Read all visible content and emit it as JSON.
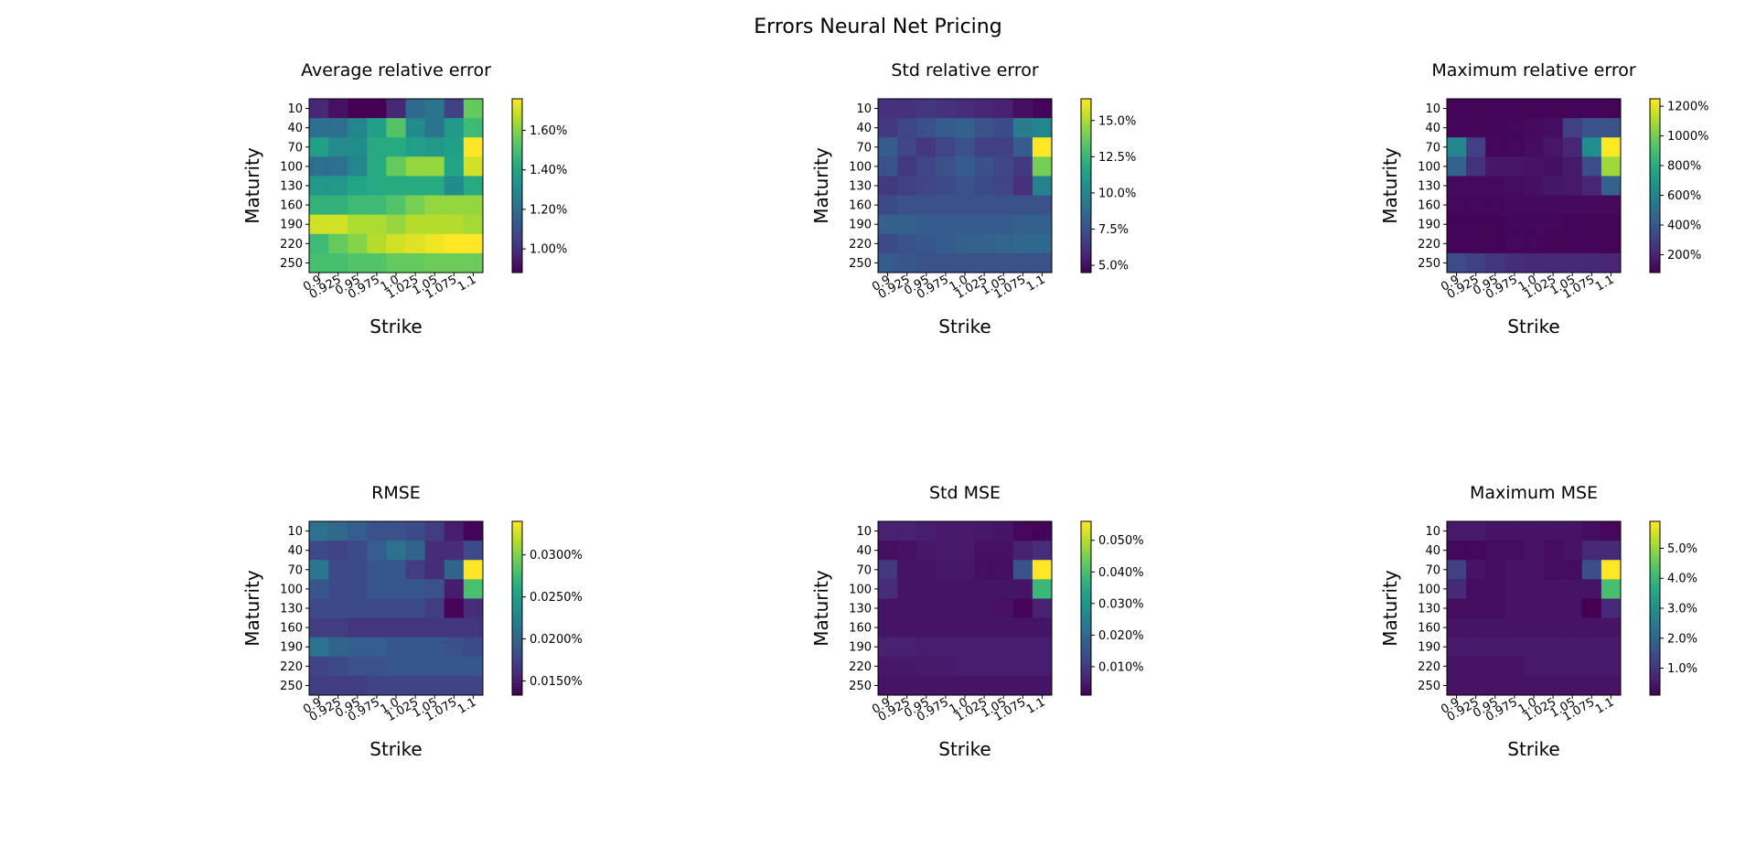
{
  "suptitle": "Errors Neural Net Pricing",
  "colormap": "viridis",
  "axes_common": {
    "xlabel": "Strike",
    "ylabel": "Maturity",
    "xticks": [
      "0.9",
      "0.925",
      "0.95",
      "0.975",
      "1.0",
      "1.025",
      "1.05",
      "1.075",
      "1.1"
    ],
    "yticks": [
      "10",
      "40",
      "70",
      "100",
      "130",
      "160",
      "190",
      "220",
      "250"
    ]
  },
  "chart_data": [
    {
      "type": "heatmap",
      "title": "Average relative error",
      "x": [
        "0.9",
        "0.925",
        "0.95",
        "0.975",
        "1.0",
        "1.025",
        "1.05",
        "1.075",
        "1.1"
      ],
      "y": [
        "10",
        "40",
        "70",
        "100",
        "130",
        "160",
        "190",
        "220",
        "250"
      ],
      "unit": "%",
      "vmin": 0.88,
      "vmax": 1.76,
      "colorbar_ticks": [
        {
          "value": 1.0,
          "label": "1.00%"
        },
        {
          "value": 1.2,
          "label": "1.20%"
        },
        {
          "value": 1.4,
          "label": "1.40%"
        },
        {
          "value": 1.6,
          "label": "1.60%"
        }
      ],
      "z": [
        [
          0.98,
          0.92,
          0.88,
          0.88,
          0.98,
          1.18,
          1.22,
          1.05,
          1.55
        ],
        [
          1.2,
          1.2,
          1.28,
          1.38,
          1.52,
          1.3,
          1.22,
          1.35,
          1.48
        ],
        [
          1.38,
          1.3,
          1.3,
          1.42,
          1.42,
          1.38,
          1.35,
          1.38,
          1.76
        ],
        [
          1.2,
          1.2,
          1.28,
          1.42,
          1.55,
          1.62,
          1.62,
          1.4,
          1.7
        ],
        [
          1.35,
          1.35,
          1.4,
          1.42,
          1.42,
          1.42,
          1.42,
          1.3,
          1.42
        ],
        [
          1.45,
          1.45,
          1.48,
          1.48,
          1.52,
          1.58,
          1.62,
          1.62,
          1.62
        ],
        [
          1.7,
          1.7,
          1.65,
          1.65,
          1.62,
          1.66,
          1.66,
          1.66,
          1.64
        ],
        [
          1.48,
          1.55,
          1.6,
          1.66,
          1.7,
          1.72,
          1.74,
          1.76,
          1.76
        ],
        [
          1.5,
          1.5,
          1.52,
          1.52,
          1.55,
          1.55,
          1.56,
          1.56,
          1.56
        ]
      ]
    },
    {
      "type": "heatmap",
      "title": "Std relative error",
      "x": [
        "0.9",
        "0.925",
        "0.95",
        "0.975",
        "1.0",
        "1.025",
        "1.05",
        "1.075",
        "1.1"
      ],
      "y": [
        "10",
        "40",
        "70",
        "100",
        "130",
        "160",
        "190",
        "220",
        "250"
      ],
      "unit": "%",
      "vmin": 4.5,
      "vmax": 16.5,
      "colorbar_ticks": [
        {
          "value": 5.0,
          "label": "5.0%"
        },
        {
          "value": 7.5,
          "label": "7.5%"
        },
        {
          "value": 10.0,
          "label": "10.0%"
        },
        {
          "value": 12.5,
          "label": "12.5%"
        },
        {
          "value": 15.0,
          "label": "15.0%"
        }
      ],
      "z": [
        [
          6.2,
          6.2,
          6.4,
          6.2,
          6.0,
          5.8,
          5.6,
          5.0,
          4.6
        ],
        [
          6.5,
          7.0,
          7.5,
          8.0,
          8.2,
          7.5,
          7.2,
          9.5,
          10.0
        ],
        [
          8.0,
          7.0,
          6.5,
          7.0,
          7.5,
          6.8,
          6.8,
          8.0,
          16.5
        ],
        [
          7.5,
          6.5,
          7.0,
          7.5,
          8.0,
          7.5,
          7.0,
          6.5,
          14.0
        ],
        [
          6.5,
          6.8,
          7.0,
          7.2,
          7.5,
          7.2,
          7.0,
          6.2,
          9.8
        ],
        [
          7.2,
          7.5,
          7.5,
          7.5,
          7.5,
          7.5,
          7.5,
          7.5,
          7.5
        ],
        [
          8.2,
          8.2,
          8.0,
          8.0,
          8.0,
          8.0,
          8.0,
          8.2,
          8.2
        ],
        [
          7.2,
          7.5,
          7.8,
          8.0,
          8.2,
          8.3,
          8.4,
          8.5,
          8.5
        ],
        [
          8.0,
          7.8,
          7.5,
          7.5,
          7.5,
          7.5,
          7.5,
          7.5,
          7.5
        ]
      ]
    },
    {
      "type": "heatmap",
      "title": "Maximum relative error",
      "x": [
        "0.9",
        "0.925",
        "0.95",
        "0.975",
        "1.0",
        "1.025",
        "1.05",
        "1.075",
        "1.1"
      ],
      "y": [
        "10",
        "40",
        "70",
        "100",
        "130",
        "160",
        "190",
        "220",
        "250"
      ],
      "unit": "%",
      "vmin": 80,
      "vmax": 1250,
      "colorbar_ticks": [
        {
          "value": 200,
          "label": "200%"
        },
        {
          "value": 400,
          "label": "400%"
        },
        {
          "value": 600,
          "label": "600%"
        },
        {
          "value": 800,
          "label": "800%"
        },
        {
          "value": 1000,
          "label": "1000%"
        },
        {
          "value": 1200,
          "label": "1200%"
        }
      ],
      "z": [
        [
          90,
          90,
          90,
          90,
          90,
          90,
          90,
          90,
          90
        ],
        [
          95,
          95,
          95,
          100,
          110,
          120,
          300,
          380,
          380
        ],
        [
          620,
          300,
          100,
          100,
          120,
          150,
          200,
          650,
          1250
        ],
        [
          450,
          250,
          150,
          150,
          140,
          130,
          160,
          350,
          1080
        ],
        [
          110,
          110,
          110,
          120,
          130,
          150,
          160,
          200,
          450
        ],
        [
          100,
          100,
          100,
          110,
          110,
          110,
          110,
          110,
          110
        ],
        [
          90,
          90,
          90,
          100,
          100,
          100,
          90,
          90,
          90
        ],
        [
          90,
          90,
          90,
          100,
          100,
          90,
          90,
          90,
          90
        ],
        [
          350,
          300,
          260,
          230,
          220,
          220,
          220,
          210,
          200
        ]
      ]
    },
    {
      "type": "heatmap",
      "title": "RMSE",
      "x": [
        "0.9",
        "0.925",
        "0.95",
        "0.975",
        "1.0",
        "1.025",
        "1.05",
        "1.075",
        "1.1"
      ],
      "y": [
        "10",
        "40",
        "70",
        "100",
        "130",
        "160",
        "190",
        "220",
        "250"
      ],
      "unit": "%",
      "vmin": 0.0133,
      "vmax": 0.034,
      "colorbar_ticks": [
        {
          "value": 0.015,
          "label": "0.0150%"
        },
        {
          "value": 0.02,
          "label": "0.0200%"
        },
        {
          "value": 0.025,
          "label": "0.0250%"
        },
        {
          "value": 0.03,
          "label": "0.0300%"
        }
      ],
      "z": [
        [
          0.021,
          0.0205,
          0.0195,
          0.0185,
          0.0185,
          0.018,
          0.017,
          0.015,
          0.0135
        ],
        [
          0.018,
          0.0175,
          0.018,
          0.0195,
          0.021,
          0.02,
          0.016,
          0.016,
          0.018
        ],
        [
          0.0215,
          0.018,
          0.018,
          0.019,
          0.019,
          0.017,
          0.016,
          0.02,
          0.034
        ],
        [
          0.019,
          0.018,
          0.018,
          0.019,
          0.019,
          0.019,
          0.0185,
          0.015,
          0.028
        ],
        [
          0.018,
          0.018,
          0.018,
          0.018,
          0.018,
          0.018,
          0.017,
          0.0135,
          0.016
        ],
        [
          0.017,
          0.017,
          0.0165,
          0.0165,
          0.0165,
          0.0165,
          0.0165,
          0.0165,
          0.0165
        ],
        [
          0.021,
          0.02,
          0.0195,
          0.0195,
          0.019,
          0.019,
          0.019,
          0.0185,
          0.018
        ],
        [
          0.0175,
          0.018,
          0.0185,
          0.0185,
          0.019,
          0.019,
          0.019,
          0.019,
          0.019
        ],
        [
          0.017,
          0.017,
          0.017,
          0.0175,
          0.0175,
          0.0175,
          0.0175,
          0.0175,
          0.0175
        ]
      ]
    },
    {
      "type": "heatmap",
      "title": "Std MSE",
      "x": [
        "0.9",
        "0.925",
        "0.95",
        "0.975",
        "1.0",
        "1.025",
        "1.05",
        "1.075",
        "1.1"
      ],
      "y": [
        "10",
        "40",
        "70",
        "100",
        "130",
        "160",
        "190",
        "220",
        "250"
      ],
      "unit": "%",
      "vmin": 0.001,
      "vmax": 0.056,
      "colorbar_ticks": [
        {
          "value": 0.01,
          "label": "0.010%"
        },
        {
          "value": 0.02,
          "label": "0.020%"
        },
        {
          "value": 0.03,
          "label": "0.030%"
        },
        {
          "value": 0.04,
          "label": "0.040%"
        },
        {
          "value": 0.05,
          "label": "0.050%"
        }
      ],
      "z": [
        [
          0.006,
          0.006,
          0.0055,
          0.005,
          0.005,
          0.0045,
          0.004,
          0.002,
          0.0015
        ],
        [
          0.003,
          0.0035,
          0.0045,
          0.005,
          0.005,
          0.0035,
          0.0035,
          0.006,
          0.008
        ],
        [
          0.01,
          0.004,
          0.004,
          0.0045,
          0.0045,
          0.003,
          0.003,
          0.015,
          0.056
        ],
        [
          0.008,
          0.004,
          0.004,
          0.004,
          0.004,
          0.004,
          0.004,
          0.004,
          0.038
        ],
        [
          0.004,
          0.004,
          0.004,
          0.004,
          0.004,
          0.004,
          0.0035,
          0.0015,
          0.006
        ],
        [
          0.004,
          0.004,
          0.004,
          0.004,
          0.004,
          0.004,
          0.004,
          0.004,
          0.004
        ],
        [
          0.006,
          0.006,
          0.0055,
          0.0055,
          0.0055,
          0.0055,
          0.0055,
          0.0055,
          0.0055
        ],
        [
          0.0045,
          0.0045,
          0.005,
          0.005,
          0.0055,
          0.0055,
          0.0055,
          0.0055,
          0.0055
        ],
        [
          0.004,
          0.004,
          0.004,
          0.004,
          0.004,
          0.004,
          0.004,
          0.004,
          0.004
        ]
      ]
    },
    {
      "type": "heatmap",
      "title": "Maximum MSE",
      "x": [
        "0.9",
        "0.925",
        "0.95",
        "0.975",
        "1.0",
        "1.025",
        "1.05",
        "1.075",
        "1.1"
      ],
      "y": [
        "10",
        "40",
        "70",
        "100",
        "130",
        "160",
        "190",
        "220",
        "250"
      ],
      "unit": "%",
      "vmin": 0.1,
      "vmax": 5.9,
      "colorbar_ticks": [
        {
          "value": 1.0,
          "label": "1.0%"
        },
        {
          "value": 2.0,
          "label": "2.0%"
        },
        {
          "value": 3.0,
          "label": "3.0%"
        },
        {
          "value": 4.0,
          "label": "4.0%"
        },
        {
          "value": 5.0,
          "label": "5.0%"
        }
      ],
      "z": [
        [
          0.5,
          0.5,
          0.4,
          0.4,
          0.4,
          0.4,
          0.4,
          0.3,
          0.2
        ],
        [
          0.2,
          0.2,
          0.3,
          0.3,
          0.4,
          0.3,
          0.4,
          0.8,
          0.8
        ],
        [
          1.2,
          0.4,
          0.3,
          0.4,
          0.4,
          0.3,
          0.3,
          1.5,
          5.9
        ],
        [
          0.8,
          0.3,
          0.3,
          0.4,
          0.4,
          0.4,
          0.4,
          0.4,
          4.2
        ],
        [
          0.3,
          0.3,
          0.3,
          0.4,
          0.4,
          0.4,
          0.4,
          0.1,
          0.8
        ],
        [
          0.4,
          0.4,
          0.4,
          0.4,
          0.4,
          0.4,
          0.4,
          0.4,
          0.4
        ],
        [
          0.5,
          0.5,
          0.5,
          0.5,
          0.5,
          0.5,
          0.5,
          0.5,
          0.5
        ],
        [
          0.4,
          0.4,
          0.4,
          0.4,
          0.5,
          0.5,
          0.5,
          0.5,
          0.5
        ],
        [
          0.4,
          0.4,
          0.4,
          0.4,
          0.4,
          0.4,
          0.4,
          0.4,
          0.4
        ]
      ]
    }
  ]
}
